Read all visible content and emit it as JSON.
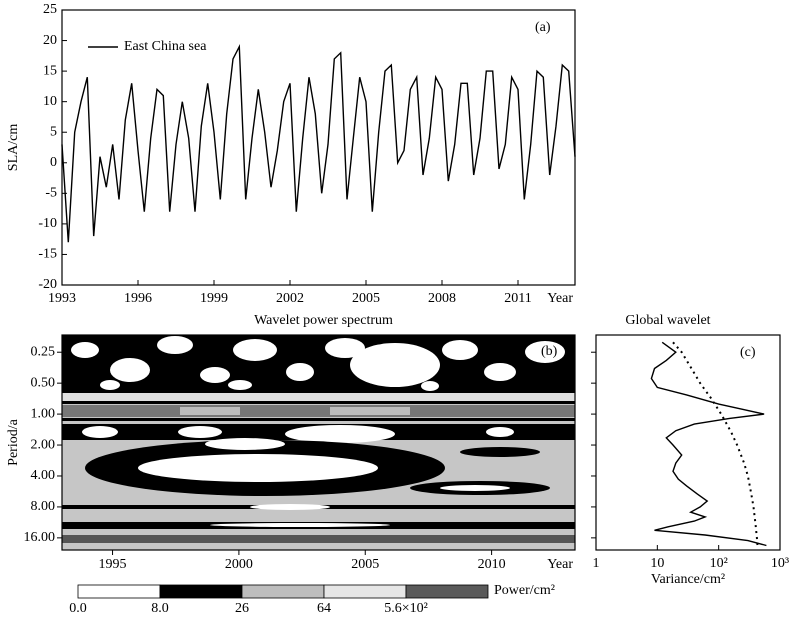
{
  "chart_data": [
    {
      "type": "line",
      "label": "(a)",
      "ylabel": "SLA/cm",
      "xlabel": "Year",
      "xlim": [
        1993,
        2013.25
      ],
      "xticks": [
        1993,
        1996,
        1999,
        2002,
        2005,
        2008,
        2011
      ],
      "ylim": [
        -20,
        25
      ],
      "yticks": [
        -20,
        -15,
        -10,
        -5,
        0,
        5,
        10,
        15,
        20,
        25
      ],
      "legend": "top-left",
      "x": [
        1993,
        1993.25,
        1993.5,
        1993.75,
        1994,
        1994.25,
        1994.5,
        1994.75,
        1995,
        1995.25,
        1995.5,
        1995.75,
        1996,
        1996.25,
        1996.5,
        1996.75,
        1997,
        1997.25,
        1997.5,
        1997.75,
        1998,
        1998.25,
        1998.5,
        1998.75,
        1999,
        1999.25,
        1999.5,
        1999.75,
        2000,
        2000.25,
        2000.5,
        2000.75,
        2001,
        2001.25,
        2001.5,
        2001.75,
        2002,
        2002.25,
        2002.5,
        2002.75,
        2003,
        2003.25,
        2003.5,
        2003.75,
        2004,
        2004.25,
        2004.5,
        2004.75,
        2005,
        2005.25,
        2005.5,
        2005.75,
        2006,
        2006.25,
        2006.5,
        2006.75,
        2007,
        2007.25,
        2007.5,
        2007.75,
        2008,
        2008.25,
        2008.5,
        2008.75,
        2009,
        2009.25,
        2009.5,
        2009.75,
        2010,
        2010.25,
        2010.5,
        2010.75,
        2011,
        2011.25,
        2011.5,
        2011.75,
        2012,
        2012.25,
        2012.5,
        2012.75,
        2013,
        2013.25
      ],
      "series": [
        {
          "name": "East China sea",
          "color": "#000000",
          "values": [
            3,
            -13,
            5,
            10,
            14,
            -12,
            1,
            -4,
            3,
            -6,
            7,
            13,
            2,
            -8,
            4,
            12,
            11,
            -8,
            3,
            10,
            4,
            -8,
            6,
            13,
            5,
            -6,
            8,
            17,
            19,
            -6,
            4,
            12,
            5,
            -4,
            2,
            10,
            13,
            -8,
            4,
            14,
            8,
            -5,
            3,
            17,
            18,
            -6,
            4,
            14,
            10,
            -8,
            5,
            15,
            16,
            0,
            2,
            12,
            14,
            -2,
            4,
            14,
            12,
            -3,
            3,
            13,
            13,
            -2,
            4,
            15,
            15,
            -1,
            3,
            14,
            12,
            -6,
            3,
            15,
            14,
            -2,
            6,
            16,
            15,
            1
          ]
        }
      ]
    },
    {
      "type": "wavelet",
      "label": "(b)",
      "title": "Wavelet power spectrum",
      "ylabel": "Period/a",
      "xlabel": "Year",
      "xlim": [
        1993,
        2013.3
      ],
      "xticks": [
        1995,
        2000,
        2005,
        2010
      ],
      "ylim": [
        0.17,
        21
      ],
      "yscale": "log",
      "yinverted": true,
      "yticks": [
        {
          "value": 0.25,
          "label": "0.25"
        },
        {
          "value": 0.5,
          "label": "0.50"
        },
        {
          "value": 1,
          "label": "1.00"
        },
        {
          "value": 2,
          "label": "2.00"
        },
        {
          "value": 4,
          "label": "4.00"
        },
        {
          "value": 8,
          "label": "8.00"
        },
        {
          "value": 16,
          "label": "16.00"
        }
      ],
      "colorbar": {
        "label": "Power/cm²",
        "colors": [
          "#ffffff",
          "#000000",
          "#bdbdbd",
          "#e6e6e6",
          "#5a5a5a"
        ],
        "ticks": [
          {
            "value": 0,
            "label": "0.0"
          },
          {
            "value": 8,
            "label": "8.0"
          },
          26,
          64,
          {
            "value": 560,
            "label": "5.6×10²"
          }
        ]
      }
    },
    {
      "type": "line",
      "label": "(c)",
      "title": "Global wavelet",
      "xlabel": "Variance/cm²",
      "xscale": "log",
      "xlim": [
        1,
        1000
      ],
      "xticks": [
        1,
        10,
        {
          "value": 100,
          "label": "10²"
        },
        {
          "value": 1000,
          "label": "10³"
        }
      ],
      "series": [
        {
          "color": "#000000",
          "style": "solid",
          "periods": [
            0.2,
            0.25,
            0.3,
            0.36,
            0.45,
            0.55,
            0.65,
            0.8,
            0.9,
            1.0,
            1.1,
            1.25,
            1.45,
            1.7,
            2.0,
            2.5,
            3.0,
            3.6,
            4.3,
            5,
            6,
            7,
            8,
            9,
            10,
            11,
            12.5,
            13.5,
            15,
            17,
            19
          ],
          "values": [
            12,
            20,
            14,
            9,
            8,
            10,
            30,
            100,
            250,
            550,
            150,
            40,
            20,
            14,
            18,
            25,
            20,
            18,
            22,
            30,
            45,
            65,
            50,
            35,
            60,
            40,
            15,
            9,
            60,
            300,
            600
          ]
        },
        {
          "color": "#000000",
          "style": "dotted",
          "periods": [
            0.2,
            0.25,
            0.35,
            0.5,
            0.7,
            1,
            1.5,
            2,
            3,
            4,
            6,
            8,
            12,
            16,
            19
          ],
          "values": [
            18,
            25,
            35,
            50,
            75,
            110,
            160,
            200,
            260,
            300,
            340,
            370,
            400,
            420,
            430
          ]
        }
      ]
    }
  ]
}
